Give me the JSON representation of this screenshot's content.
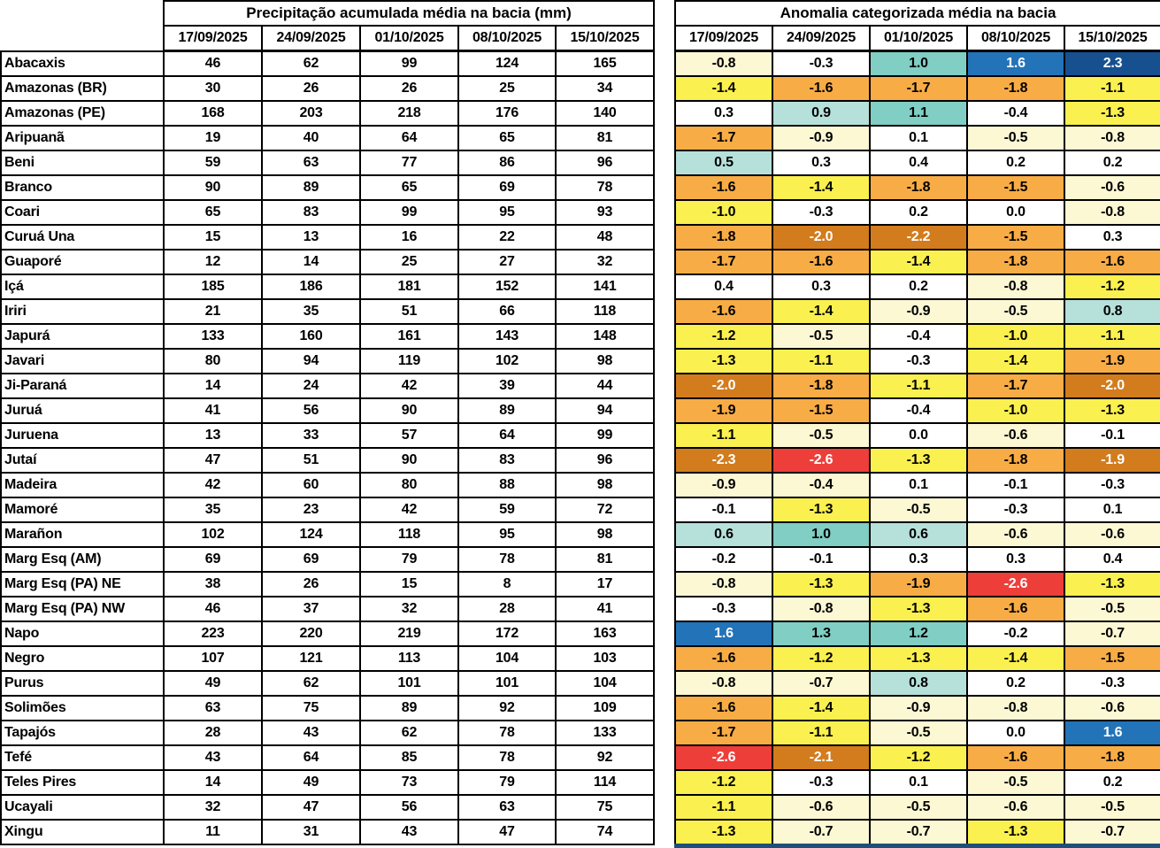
{
  "palette": {
    "W": "#FFFFFF",
    "C": "#FCF8D4",
    "Y": "#FAF04F",
    "O": "#F8AC46",
    "DO": "#D27C1D",
    "R": "#EE3E3A",
    "LT": "#B6E0DA",
    "T": "#80CEC4",
    "B": "#2373B8",
    "DB": "#17508F",
    "bottom_strip": "#1F4E79"
  },
  "white_text_categories": [
    "DO",
    "R",
    "B",
    "DB"
  ],
  "chart_data": [
    {
      "type": "table",
      "title": "Precipitação acumulada média na bacia (mm)",
      "columns": [
        "17/09/2025",
        "24/09/2025",
        "01/10/2025",
        "08/10/2025",
        "15/10/2025"
      ],
      "rows": [
        {
          "label": "Abacaxis",
          "values": [
            46,
            62,
            99,
            124,
            165
          ]
        },
        {
          "label": "Amazonas (BR)",
          "values": [
            30,
            26,
            26,
            25,
            34
          ]
        },
        {
          "label": "Amazonas (PE)",
          "values": [
            168,
            203,
            218,
            176,
            140
          ]
        },
        {
          "label": "Aripuanã",
          "values": [
            19,
            40,
            64,
            65,
            81
          ]
        },
        {
          "label": "Beni",
          "values": [
            59,
            63,
            77,
            86,
            96
          ]
        },
        {
          "label": "Branco",
          "values": [
            90,
            89,
            65,
            69,
            78
          ]
        },
        {
          "label": "Coari",
          "values": [
            65,
            83,
            99,
            95,
            93
          ]
        },
        {
          "label": "Curuá Una",
          "values": [
            15,
            13,
            16,
            22,
            48
          ]
        },
        {
          "label": "Guaporé",
          "values": [
            12,
            14,
            25,
            27,
            32
          ]
        },
        {
          "label": "Içá",
          "values": [
            185,
            186,
            181,
            152,
            141
          ]
        },
        {
          "label": "Iriri",
          "values": [
            21,
            35,
            51,
            66,
            118
          ]
        },
        {
          "label": "Japurá",
          "values": [
            133,
            160,
            161,
            143,
            148
          ]
        },
        {
          "label": "Javari",
          "values": [
            80,
            94,
            119,
            102,
            98
          ]
        },
        {
          "label": "Ji-Paraná",
          "values": [
            14,
            24,
            42,
            39,
            44
          ]
        },
        {
          "label": "Juruá",
          "values": [
            41,
            56,
            90,
            89,
            94
          ]
        },
        {
          "label": "Juruena",
          "values": [
            13,
            33,
            57,
            64,
            99
          ]
        },
        {
          "label": "Jutaí",
          "values": [
            47,
            51,
            90,
            83,
            96
          ]
        },
        {
          "label": "Madeira",
          "values": [
            42,
            60,
            80,
            88,
            98
          ]
        },
        {
          "label": "Mamoré",
          "values": [
            35,
            23,
            42,
            59,
            72
          ]
        },
        {
          "label": "Marañon",
          "values": [
            102,
            124,
            118,
            95,
            98
          ]
        },
        {
          "label": "Marg Esq (AM)",
          "values": [
            69,
            69,
            79,
            78,
            81
          ]
        },
        {
          "label": "Marg Esq (PA) NE",
          "values": [
            38,
            26,
            15,
            8,
            17
          ]
        },
        {
          "label": "Marg Esq (PA) NW",
          "values": [
            46,
            37,
            32,
            28,
            41
          ]
        },
        {
          "label": "Napo",
          "values": [
            223,
            220,
            219,
            172,
            163
          ]
        },
        {
          "label": "Negro",
          "values": [
            107,
            121,
            113,
            104,
            103
          ]
        },
        {
          "label": "Purus",
          "values": [
            49,
            62,
            101,
            101,
            104
          ]
        },
        {
          "label": "Solimões",
          "values": [
            63,
            75,
            89,
            92,
            109
          ]
        },
        {
          "label": "Tapajós",
          "values": [
            28,
            43,
            62,
            78,
            133
          ]
        },
        {
          "label": "Tefé",
          "values": [
            43,
            64,
            85,
            78,
            92
          ]
        },
        {
          "label": "Teles Pires",
          "values": [
            14,
            49,
            73,
            79,
            114
          ]
        },
        {
          "label": "Ucayali",
          "values": [
            32,
            47,
            56,
            63,
            75
          ]
        },
        {
          "label": "Xingu",
          "values": [
            11,
            31,
            43,
            47,
            74
          ]
        }
      ]
    },
    {
      "type": "heatmap",
      "title": "Anomalia categorizada média na bacia",
      "columns": [
        "17/09/2025",
        "24/09/2025",
        "01/10/2025",
        "08/10/2025",
        "15/10/2025"
      ],
      "rows": [
        {
          "label": "Abacaxis",
          "values": [
            -0.8,
            -0.3,
            1.0,
            1.6,
            2.3
          ],
          "colors": [
            "C",
            "W",
            "T",
            "B",
            "DB"
          ]
        },
        {
          "label": "Amazonas (BR)",
          "values": [
            -1.4,
            -1.6,
            -1.7,
            -1.8,
            -1.1
          ],
          "colors": [
            "Y",
            "O",
            "O",
            "O",
            "Y"
          ]
        },
        {
          "label": "Amazonas (PE)",
          "values": [
            0.3,
            0.9,
            1.1,
            -0.4,
            -1.3
          ],
          "colors": [
            "W",
            "LT",
            "T",
            "W",
            "Y"
          ]
        },
        {
          "label": "Aripuanã",
          "values": [
            -1.7,
            -0.9,
            0.1,
            -0.5,
            -0.8
          ],
          "colors": [
            "O",
            "C",
            "W",
            "C",
            "C"
          ]
        },
        {
          "label": "Beni",
          "values": [
            0.5,
            0.3,
            0.4,
            0.2,
            0.2
          ],
          "colors": [
            "LT",
            "W",
            "W",
            "W",
            "W"
          ]
        },
        {
          "label": "Branco",
          "values": [
            -1.6,
            -1.4,
            -1.8,
            -1.5,
            -0.6
          ],
          "colors": [
            "O",
            "Y",
            "O",
            "O",
            "C"
          ]
        },
        {
          "label": "Coari",
          "values": [
            -1.0,
            -0.3,
            0.2,
            0.0,
            -0.8
          ],
          "colors": [
            "Y",
            "W",
            "W",
            "W",
            "C"
          ]
        },
        {
          "label": "Curuá Una",
          "values": [
            -1.8,
            -2.0,
            -2.2,
            -1.5,
            0.3
          ],
          "colors": [
            "O",
            "DO",
            "DO",
            "O",
            "W"
          ]
        },
        {
          "label": "Guaporé",
          "values": [
            -1.7,
            -1.6,
            -1.4,
            -1.8,
            -1.6
          ],
          "colors": [
            "O",
            "O",
            "Y",
            "O",
            "O"
          ]
        },
        {
          "label": "Içá",
          "values": [
            0.4,
            0.3,
            0.2,
            -0.8,
            -1.2
          ],
          "colors": [
            "W",
            "W",
            "W",
            "C",
            "Y"
          ]
        },
        {
          "label": "Iriri",
          "values": [
            -1.6,
            -1.4,
            -0.9,
            -0.5,
            0.8
          ],
          "colors": [
            "O",
            "Y",
            "C",
            "C",
            "LT"
          ]
        },
        {
          "label": "Japurá",
          "values": [
            -1.2,
            -0.5,
            -0.4,
            -1.0,
            -1.1
          ],
          "colors": [
            "Y",
            "C",
            "W",
            "Y",
            "Y"
          ]
        },
        {
          "label": "Javari",
          "values": [
            -1.3,
            -1.1,
            -0.3,
            -1.4,
            -1.9
          ],
          "colors": [
            "Y",
            "Y",
            "W",
            "Y",
            "O"
          ]
        },
        {
          "label": "Ji-Paraná",
          "values": [
            -2.0,
            -1.8,
            -1.1,
            -1.7,
            -2.0
          ],
          "colors": [
            "DO",
            "O",
            "Y",
            "O",
            "DO"
          ]
        },
        {
          "label": "Juruá",
          "values": [
            -1.9,
            -1.5,
            -0.4,
            -1.0,
            -1.3
          ],
          "colors": [
            "O",
            "O",
            "W",
            "Y",
            "Y"
          ]
        },
        {
          "label": "Juruena",
          "values": [
            -1.1,
            -0.5,
            0.0,
            -0.6,
            -0.1
          ],
          "colors": [
            "Y",
            "C",
            "W",
            "C",
            "W"
          ]
        },
        {
          "label": "Jutaí",
          "values": [
            -2.3,
            -2.6,
            -1.3,
            -1.8,
            -1.9
          ],
          "colors": [
            "DO",
            "R",
            "Y",
            "O",
            "DO"
          ]
        },
        {
          "label": "Madeira",
          "values": [
            -0.9,
            -0.4,
            0.1,
            -0.1,
            -0.3
          ],
          "colors": [
            "C",
            "C",
            "W",
            "W",
            "W"
          ]
        },
        {
          "label": "Mamoré",
          "values": [
            -0.1,
            -1.3,
            -0.5,
            -0.3,
            0.1
          ],
          "colors": [
            "W",
            "Y",
            "C",
            "W",
            "W"
          ]
        },
        {
          "label": "Marañon",
          "values": [
            0.6,
            1.0,
            0.6,
            -0.6,
            -0.6
          ],
          "colors": [
            "LT",
            "T",
            "LT",
            "C",
            "C"
          ]
        },
        {
          "label": "Marg Esq (AM)",
          "values": [
            -0.2,
            -0.1,
            0.3,
            0.3,
            0.4
          ],
          "colors": [
            "W",
            "W",
            "W",
            "W",
            "W"
          ]
        },
        {
          "label": "Marg Esq (PA) NE",
          "values": [
            -0.8,
            -1.3,
            -1.9,
            -2.6,
            -1.3
          ],
          "colors": [
            "C",
            "Y",
            "O",
            "R",
            "Y"
          ]
        },
        {
          "label": "Marg Esq (PA) NW",
          "values": [
            -0.3,
            -0.8,
            -1.3,
            -1.6,
            -0.5
          ],
          "colors": [
            "W",
            "C",
            "Y",
            "O",
            "C"
          ]
        },
        {
          "label": "Napo",
          "values": [
            1.6,
            1.3,
            1.2,
            -0.2,
            -0.7
          ],
          "colors": [
            "B",
            "T",
            "T",
            "W",
            "C"
          ]
        },
        {
          "label": "Negro",
          "values": [
            -1.6,
            -1.2,
            -1.3,
            -1.4,
            -1.5
          ],
          "colors": [
            "O",
            "Y",
            "Y",
            "Y",
            "O"
          ]
        },
        {
          "label": "Purus",
          "values": [
            -0.8,
            -0.7,
            0.8,
            0.2,
            -0.3
          ],
          "colors": [
            "C",
            "C",
            "LT",
            "W",
            "W"
          ]
        },
        {
          "label": "Solimões",
          "values": [
            -1.6,
            -1.4,
            -0.9,
            -0.8,
            -0.6
          ],
          "colors": [
            "O",
            "Y",
            "C",
            "C",
            "C"
          ]
        },
        {
          "label": "Tapajós",
          "values": [
            -1.7,
            -1.1,
            -0.5,
            0.0,
            1.6
          ],
          "colors": [
            "O",
            "Y",
            "C",
            "W",
            "B"
          ]
        },
        {
          "label": "Tefé",
          "values": [
            -2.6,
            -2.1,
            -1.2,
            -1.6,
            -1.8
          ],
          "colors": [
            "R",
            "DO",
            "Y",
            "O",
            "O"
          ]
        },
        {
          "label": "Teles Pires",
          "values": [
            -1.2,
            -0.3,
            0.1,
            -0.5,
            0.2
          ],
          "colors": [
            "Y",
            "W",
            "W",
            "C",
            "W"
          ]
        },
        {
          "label": "Ucayali",
          "values": [
            -1.1,
            -0.6,
            -0.5,
            -0.6,
            -0.5
          ],
          "colors": [
            "Y",
            "C",
            "C",
            "C",
            "C"
          ]
        },
        {
          "label": "Xingu",
          "values": [
            -1.3,
            -0.7,
            -0.7,
            -1.3,
            -0.7
          ],
          "colors": [
            "Y",
            "C",
            "C",
            "Y",
            "C"
          ]
        }
      ]
    }
  ]
}
